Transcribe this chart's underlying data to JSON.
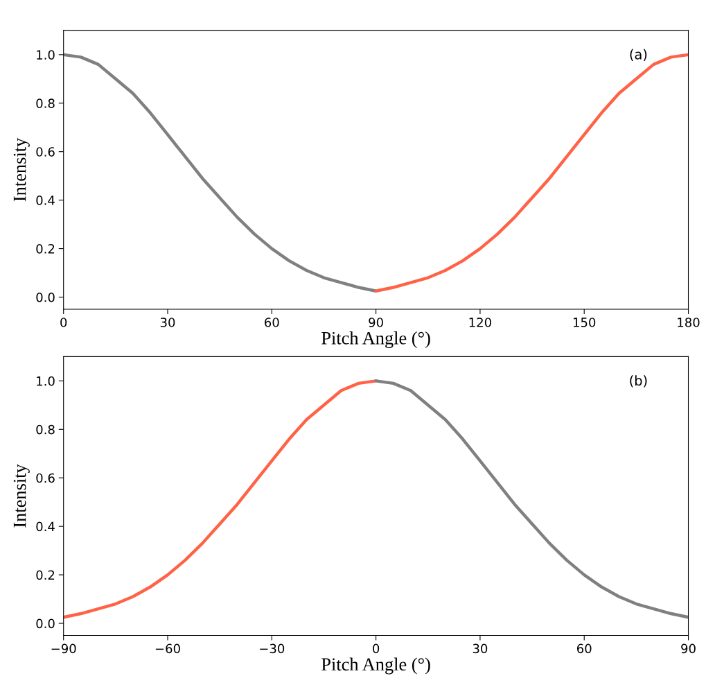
{
  "chart_data": [
    {
      "type": "line",
      "xlabel": "Pitch Angle (°)",
      "ylabel": "Intensity",
      "annotations": [
        "(a)"
      ],
      "xlim": [
        0,
        180
      ],
      "ylim": [
        -0.05,
        1.1
      ],
      "xticks": [
        0,
        30,
        60,
        90,
        120,
        150,
        180
      ],
      "yticks": [
        {
          "value": 0,
          "label": "0.0"
        },
        {
          "value": 0.2,
          "label": "0.2"
        },
        {
          "value": 0.4,
          "label": "0.4"
        },
        {
          "value": 0.6,
          "label": "0.6"
        },
        {
          "value": 0.8,
          "label": "0.8"
        },
        {
          "value": 1.0,
          "label": "1.0"
        }
      ],
      "grid": false,
      "legend": false,
      "series": [
        {
          "color": "#808080",
          "x": [
            0,
            5,
            10,
            15,
            20,
            25,
            30,
            35,
            40,
            45,
            50,
            55,
            60,
            65,
            70,
            75,
            80,
            85,
            90
          ],
          "values": [
            1.0,
            0.99,
            0.96,
            0.9,
            0.84,
            0.76,
            0.67,
            0.58,
            0.49,
            0.41,
            0.33,
            0.26,
            0.2,
            0.15,
            0.11,
            0.08,
            0.06,
            0.04,
            0.025
          ]
        },
        {
          "color": "#ff6347",
          "x": [
            90,
            95,
            100,
            105,
            110,
            115,
            120,
            125,
            130,
            135,
            140,
            145,
            150,
            155,
            160,
            165,
            170,
            175,
            180
          ],
          "values": [
            0.025,
            0.04,
            0.06,
            0.08,
            0.11,
            0.15,
            0.2,
            0.26,
            0.33,
            0.41,
            0.49,
            0.58,
            0.67,
            0.76,
            0.84,
            0.9,
            0.96,
            0.99,
            1.0
          ]
        }
      ]
    },
    {
      "type": "line",
      "xlabel": "Pitch Angle (°)",
      "ylabel": "Intensity",
      "annotations": [
        "(b)"
      ],
      "xlim": [
        -90,
        90
      ],
      "ylim": [
        -0.05,
        1.1
      ],
      "xticks": [
        {
          "value": -90,
          "label": "−90"
        },
        {
          "value": -60,
          "label": "−60"
        },
        {
          "value": -30,
          "label": "−30"
        },
        0,
        30,
        60,
        90
      ],
      "yticks": [
        {
          "value": 0,
          "label": "0.0"
        },
        {
          "value": 0.2,
          "label": "0.2"
        },
        {
          "value": 0.4,
          "label": "0.4"
        },
        {
          "value": 0.6,
          "label": "0.6"
        },
        {
          "value": 0.8,
          "label": "0.8"
        },
        {
          "value": 1.0,
          "label": "1.0"
        }
      ],
      "grid": false,
      "legend": false,
      "series": [
        {
          "color": "#ff6347",
          "x": [
            -90,
            -85,
            -80,
            -75,
            -70,
            -65,
            -60,
            -55,
            -50,
            -45,
            -40,
            -35,
            -30,
            -25,
            -20,
            -15,
            -10,
            -5,
            0
          ],
          "values": [
            0.025,
            0.04,
            0.06,
            0.08,
            0.11,
            0.15,
            0.2,
            0.26,
            0.33,
            0.41,
            0.49,
            0.58,
            0.67,
            0.76,
            0.84,
            0.9,
            0.96,
            0.99,
            1.0
          ]
        },
        {
          "color": "#808080",
          "x": [
            0,
            5,
            10,
            15,
            20,
            25,
            30,
            35,
            40,
            45,
            50,
            55,
            60,
            65,
            70,
            75,
            80,
            85,
            90
          ],
          "values": [
            1.0,
            0.99,
            0.96,
            0.9,
            0.84,
            0.76,
            0.67,
            0.58,
            0.49,
            0.41,
            0.33,
            0.26,
            0.2,
            0.15,
            0.11,
            0.08,
            0.06,
            0.04,
            0.025
          ]
        }
      ]
    }
  ]
}
